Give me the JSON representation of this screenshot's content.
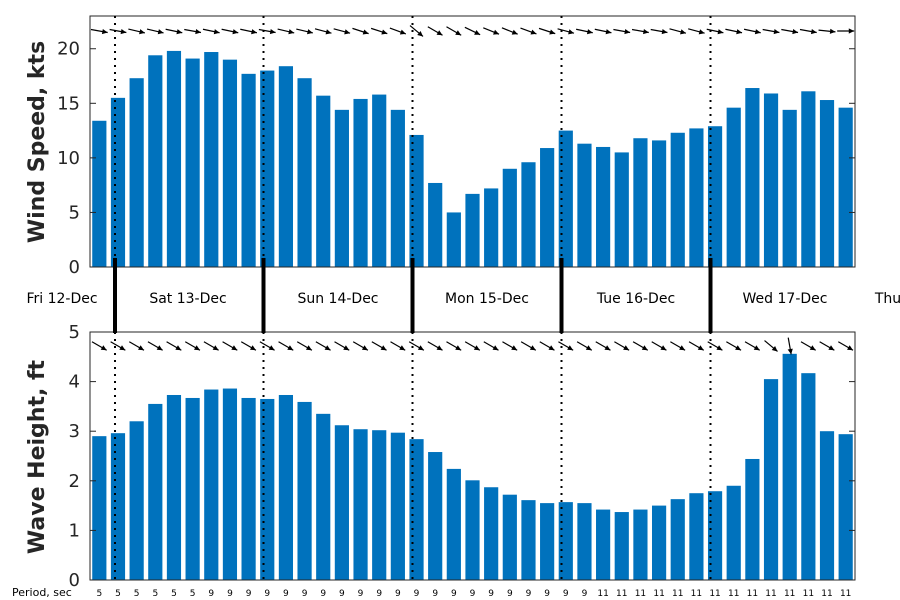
{
  "chart_data": [
    {
      "type": "bar",
      "ylabel": "Wind Speed, kts",
      "ylim": [
        0,
        23
      ],
      "yticks": [
        0,
        5,
        10,
        15,
        20
      ],
      "values": [
        13.4,
        15.5,
        17.3,
        19.4,
        19.8,
        19.1,
        19.7,
        19.0,
        17.7,
        18.0,
        18.4,
        17.3,
        15.7,
        14.4,
        15.4,
        15.8,
        14.4,
        12.1,
        7.7,
        5.0,
        6.7,
        7.2,
        9.0,
        9.6,
        10.9,
        12.5,
        11.3,
        11.0,
        10.5,
        11.8,
        11.6,
        12.3,
        12.7,
        12.9,
        14.6,
        16.4,
        15.9,
        14.4,
        16.1,
        15.3,
        14.6
      ],
      "direction_arrows": "shown above each bar",
      "grid": false
    },
    {
      "type": "bar",
      "ylabel": "Wave Height, ft",
      "ylim": [
        0,
        5
      ],
      "yticks": [
        0,
        1,
        2,
        3,
        4,
        5
      ],
      "values": [
        2.9,
        2.96,
        3.2,
        3.55,
        3.73,
        3.67,
        3.84,
        3.86,
        3.67,
        3.65,
        3.73,
        3.59,
        3.35,
        3.12,
        3.04,
        3.02,
        2.97,
        2.84,
        2.58,
        2.24,
        2.01,
        1.87,
        1.72,
        1.61,
        1.55,
        1.57,
        1.55,
        1.42,
        1.37,
        1.42,
        1.5,
        1.63,
        1.75,
        1.79,
        1.9,
        2.44,
        4.05,
        4.56,
        4.17,
        3.0,
        2.94
      ],
      "direction_arrows": "shown above each bar",
      "grid": false
    }
  ],
  "days": [
    "Fri 12-Dec",
    "Sat 13-Dec",
    "Sun 14-Dec",
    "Mon 15-Dec",
    "Tue 16-Dec",
    "Wed 17-Dec",
    "Thu"
  ],
  "period_title": "Period, sec",
  "periods": [
    "5",
    "5",
    "5",
    "5",
    "5",
    "5",
    "9",
    "9",
    "9",
    "9",
    "9",
    "9",
    "9",
    "9",
    "9",
    "9",
    "9",
    "9",
    "9",
    "9",
    "9",
    "9",
    "9",
    "9",
    "9",
    "9",
    "9",
    "11",
    "11",
    "11",
    "11",
    "11",
    "11",
    "11",
    "11",
    "11",
    "11",
    "11",
    "11",
    "11",
    "11"
  ],
  "colors": {
    "bar": "#0072bd",
    "arrow": "#000000",
    "axis": "#262626"
  },
  "wind_dir_deg": [
    280,
    280,
    283,
    283,
    282,
    280,
    282,
    282,
    282,
    280,
    283,
    283,
    285,
    285,
    288,
    288,
    290,
    310,
    300,
    300,
    296,
    292,
    292,
    290,
    288,
    285,
    282,
    282,
    280,
    280,
    280,
    285,
    285,
    282,
    282,
    282,
    280,
    280,
    280,
    276,
    270
  ],
  "wave_dir_deg": [
    300,
    300,
    300,
    300,
    300,
    300,
    300,
    300,
    300,
    300,
    300,
    300,
    300,
    300,
    300,
    300,
    300,
    300,
    300,
    300,
    300,
    300,
    300,
    300,
    300,
    300,
    300,
    300,
    300,
    300,
    300,
    300,
    300,
    300,
    300,
    300,
    310,
    350,
    300,
    300,
    300
  ]
}
